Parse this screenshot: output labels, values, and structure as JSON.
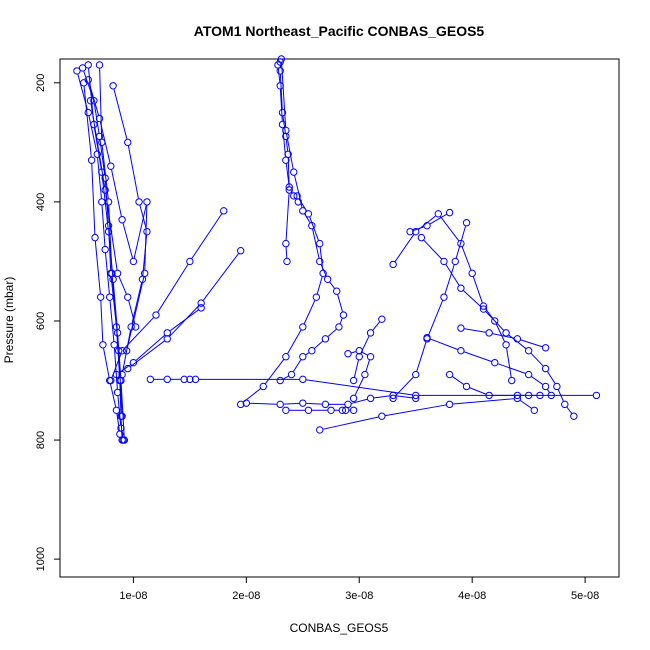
{
  "chart_data": {
    "type": "line",
    "title": "ATOM1 Northeast_Pacific CONBAS_GEOS5",
    "xlabel": "CONBAS_GEOS5",
    "ylabel": "Pressure (mbar)",
    "xlim": [
      3.5e-09,
      5.3e-08
    ],
    "ylim": [
      1030,
      160
    ],
    "y_inverted": true,
    "x_ticks": [
      {
        "value": 1e-08,
        "label": "1e-08"
      },
      {
        "value": 2e-08,
        "label": "2e-08"
      },
      {
        "value": 3e-08,
        "label": "3e-08"
      },
      {
        "value": 4e-08,
        "label": "4e-08"
      },
      {
        "value": 5e-08,
        "label": "5e-08"
      }
    ],
    "y_ticks": [
      {
        "value": 200,
        "label": "200"
      },
      {
        "value": 400,
        "label": "400"
      },
      {
        "value": 600,
        "label": "600"
      },
      {
        "value": 800,
        "label": "800"
      },
      {
        "value": 1000,
        "label": "1000"
      }
    ],
    "grid": false,
    "line_color": "#0000ff",
    "marker": "open-circle",
    "series": [
      {
        "x": [
          5.5e-09,
          6.5e-09,
          7e-09,
          7.5e-09,
          7.8e-09,
          8e-09,
          8.5e-09,
          8.8e-09,
          8.9e-09,
          9e-09
        ],
        "y": [
          175,
          230,
          290,
          360,
          440,
          520,
          610,
          700,
          760,
          800
        ]
      },
      {
        "x": [
          5e-09,
          6e-09,
          6.8e-09,
          7.2e-09,
          7.5e-09,
          7.9e-09,
          8.3e-09,
          8.6e-09,
          8.9e-09,
          9.1e-09
        ],
        "y": [
          180,
          250,
          320,
          400,
          480,
          560,
          640,
          720,
          780,
          800
        ]
      },
      {
        "x": [
          6e-09,
          6.5e-09,
          7.2e-09,
          7.8e-09,
          8.2e-09,
          8.6e-09,
          8.9e-09,
          9.2e-09
        ],
        "y": [
          170,
          270,
          350,
          450,
          530,
          620,
          700,
          800
        ]
      },
      {
        "x": [
          7e-09,
          7.2e-09,
          7.8e-09,
          8.1e-09,
          8.7e-09,
          9e-09
        ],
        "y": [
          170,
          300,
          400,
          520,
          650,
          760
        ]
      },
      {
        "x": [
          5.6e-09,
          6.3e-09,
          6.6e-09,
          7.1e-09,
          7.3e-09,
          7.9e-09,
          8.5e-09,
          8.8e-09
        ],
        "y": [
          200,
          330,
          460,
          560,
          640,
          700,
          750,
          790
        ]
      },
      {
        "x": [
          8.2e-09,
          9.5e-09,
          1.05e-08,
          1.12e-08,
          1.08e-08,
          9.8e-09,
          9e-09
        ],
        "y": [
          205,
          300,
          400,
          450,
          530,
          610,
          690
        ]
      },
      {
        "x": [
          6e-09,
          7e-09,
          8e-09,
          9e-09,
          1e-08,
          1.12e-08,
          1.1e-08,
          9.4e-09
        ],
        "y": [
          195,
          260,
          340,
          430,
          500,
          400,
          520,
          650
        ]
      },
      {
        "x": [
          6.2e-09,
          7.5e-09,
          8.6e-09,
          9.5e-09,
          1.02e-08
        ],
        "y": [
          230,
          380,
          520,
          560,
          610
        ]
      },
      {
        "x": [
          1.15e-08,
          1.3e-08,
          1.45e-08,
          1.5e-08,
          1.55e-08,
          2.5e-08,
          3.5e-08,
          4.5e-08,
          5.1e-08
        ],
        "y": [
          698,
          698,
          698,
          698,
          698,
          698,
          725,
          725,
          725
        ]
      },
      {
        "x": [
          1.8e-08,
          1.5e-08,
          1.2e-08,
          9e-09,
          8e-09
        ],
        "y": [
          415,
          500,
          590,
          650,
          700
        ]
      },
      {
        "x": [
          1.95e-08,
          1.6e-08,
          1.3e-08,
          9.5e-09
        ],
        "y": [
          482,
          570,
          630,
          680
        ]
      },
      {
        "x": [
          1.6e-08,
          1.3e-08,
          1e-08,
          8.5e-09
        ],
        "y": [
          578,
          620,
          670,
          690
        ]
      },
      {
        "x": [
          2.3e-08,
          2.3e-08,
          2.32e-08,
          2.35e-08,
          2.37e-08,
          2.38e-08,
          2.35e-08,
          2.36e-08
        ],
        "y": [
          165,
          180,
          250,
          290,
          320,
          380,
          470,
          500
        ]
      },
      {
        "x": [
          2.28e-08,
          2.3e-08,
          2.32e-08,
          2.35e-08,
          2.38e-08,
          2.42e-08,
          2.46e-08
        ],
        "y": [
          170,
          205,
          270,
          330,
          375,
          390,
          400
        ]
      },
      {
        "x": [
          2.31e-08,
          2.35e-08,
          2.42e-08,
          2.5e-08,
          2.58e-08,
          2.65e-08,
          2.72e-08,
          2.8e-08,
          2.86e-08,
          2.82e-08,
          2.7e-08,
          2.58e-08,
          2.5e-08,
          2.4e-08,
          2.3e-08
        ],
        "y": [
          160,
          280,
          350,
          415,
          440,
          500,
          530,
          550,
          590,
          610,
          630,
          650,
          660,
          690,
          700
        ]
      },
      {
        "x": [
          2.45e-08,
          2.55e-08,
          2.65e-08,
          2.68e-08,
          2.62e-08,
          2.5e-08,
          2.35e-08,
          2.15e-08,
          1.95e-08
        ],
        "y": [
          390,
          420,
          470,
          520,
          560,
          610,
          660,
          710,
          740
        ]
      },
      {
        "x": [
          2.9e-08,
          3e-08,
          3.1e-08,
          3.05e-08,
          2.95e-08
        ],
        "y": [
          655,
          650,
          660,
          690,
          730
        ]
      },
      {
        "x": [
          2e-08,
          2.3e-08,
          2.5e-08,
          2.7e-08,
          2.9e-08,
          3.1e-08,
          3.3e-08,
          3.5e-08
        ],
        "y": [
          738,
          740,
          738,
          740,
          740,
          730,
          725,
          730
        ]
      },
      {
        "x": [
          2.35e-08,
          2.55e-08,
          2.75e-08,
          2.85e-08,
          2.88e-08,
          2.95e-08
        ],
        "y": [
          750,
          750,
          750,
          750,
          750,
          750
        ]
      },
      {
        "x": [
          2.65e-08,
          3.2e-08,
          3.8e-08,
          4.4e-08,
          4.55e-08
        ],
        "y": [
          783,
          760,
          740,
          730,
          750
        ]
      },
      {
        "x": [
          3.3e-08,
          3.5e-08,
          3.7e-08,
          3.9e-08,
          4e-08,
          4.1e-08,
          4.2e-08,
          4.3e-08,
          4.35e-08
        ],
        "y": [
          505,
          450,
          420,
          470,
          520,
          575,
          600,
          640,
          700
        ]
      },
      {
        "x": [
          3.55e-08,
          3.75e-08,
          3.9e-08,
          4.1e-08,
          4.3e-08,
          4.5e-08,
          4.65e-08,
          4.75e-08,
          4.82e-08,
          4.9e-08
        ],
        "y": [
          460,
          500,
          545,
          580,
          620,
          650,
          680,
          710,
          740,
          760
        ]
      },
      {
        "x": [
          3.95e-08,
          3.85e-08,
          3.75e-08,
          3.6e-08,
          3.5e-08,
          3.3e-08
        ],
        "y": [
          435,
          500,
          560,
          630,
          690,
          730
        ]
      },
      {
        "x": [
          3.8e-08,
          3.6e-08,
          3.45e-08
        ],
        "y": [
          418,
          440,
          450
        ]
      },
      {
        "x": [
          3.6e-08,
          3.9e-08,
          4.2e-08,
          4.5e-08,
          4.65e-08,
          4.7e-08
        ],
        "y": [
          628,
          650,
          670,
          690,
          710,
          725
        ]
      },
      {
        "x": [
          3.9e-08,
          4.15e-08,
          4.4e-08,
          4.65e-08
        ],
        "y": [
          612,
          620,
          630,
          645
        ]
      },
      {
        "x": [
          3.8e-08,
          3.95e-08,
          4.15e-08,
          4.4e-08,
          4.6e-08
        ],
        "y": [
          690,
          710,
          725,
          725,
          725
        ]
      },
      {
        "x": [
          3.2e-08,
          3.1e-08,
          3e-08,
          2.95e-08
        ],
        "y": [
          597,
          620,
          660,
          700
        ]
      }
    ]
  }
}
